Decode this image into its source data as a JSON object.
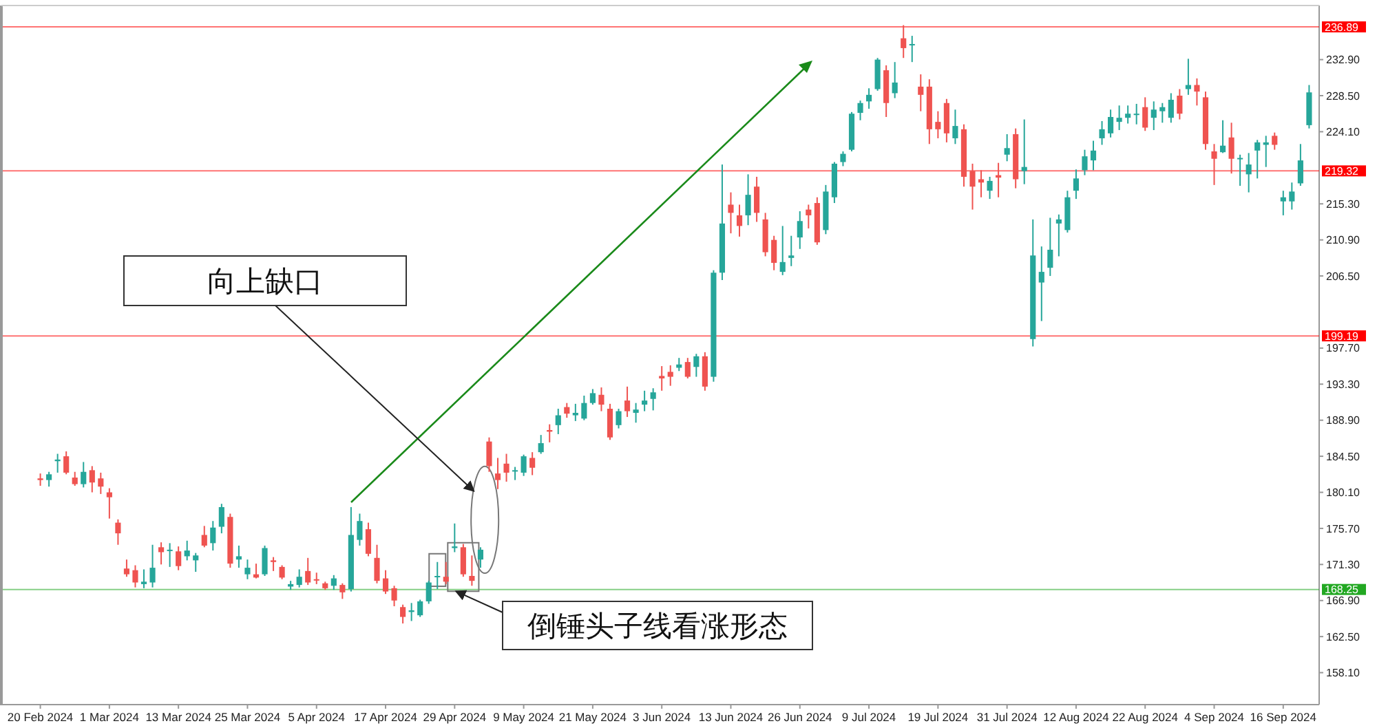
{
  "chart_data": {
    "type": "candlestick",
    "categories": [
      "20 Feb 2024",
      null,
      null,
      null,
      null,
      null,
      null,
      null,
      "1 Mar 2024",
      null,
      null,
      null,
      null,
      null,
      null,
      null,
      "13 Mar 2024",
      null,
      null,
      null,
      null,
      null,
      null,
      null,
      "25 Mar 2024",
      null,
      null,
      null,
      null,
      null,
      null,
      null,
      "5 Apr 2024",
      null,
      null,
      null,
      null,
      null,
      null,
      null,
      "17 Apr 2024",
      null,
      null,
      null,
      null,
      null,
      null,
      null,
      "29 Apr 2024",
      null,
      null,
      null,
      null,
      null,
      null,
      null,
      "9 May 2024",
      null,
      null,
      null,
      null,
      null,
      null,
      null,
      "21 May 2024",
      null,
      null,
      null,
      null,
      null,
      null,
      null,
      "3 Jun 2024",
      null,
      null,
      null,
      null,
      null,
      null,
      null,
      "13 Jun 2024",
      null,
      null,
      null,
      null,
      null,
      null,
      null,
      "26 Jun 2024",
      null,
      null,
      null,
      null,
      null,
      null,
      null,
      "9 Jul 2024",
      null,
      null,
      null,
      null,
      null,
      null,
      null,
      "19 Jul 2024",
      null,
      null,
      null,
      null,
      null,
      null,
      null,
      "31 Jul 2024",
      null,
      null,
      null,
      null,
      null,
      null,
      null,
      "12 Aug 2024",
      null,
      null,
      null,
      null,
      null,
      null,
      null,
      "22 Aug 2024",
      null,
      null,
      null,
      null,
      null,
      null,
      null,
      "4 Sep 2024",
      null,
      null,
      null,
      null,
      null,
      null,
      null,
      "16 Sep 2024",
      null,
      null,
      null
    ],
    "ohlc": [
      [
        181.8,
        182.4,
        180.9,
        181.6
      ],
      [
        181.6,
        182.6,
        180.8,
        182.3
      ],
      [
        183.9,
        184.8,
        182.5,
        184.1
      ],
      [
        184.5,
        185.1,
        182.3,
        182.5
      ],
      [
        181.9,
        182.6,
        180.9,
        181.1
      ],
      [
        181.1,
        183.8,
        180.7,
        182.6
      ],
      [
        182.8,
        183.3,
        180.1,
        181.3
      ],
      [
        181.8,
        182.5,
        179.9,
        180.8
      ],
      [
        180.1,
        180.6,
        176.9,
        179.5
      ],
      [
        176.4,
        176.8,
        173.7,
        175.1
      ],
      [
        170.8,
        171.9,
        169.8,
        170.1
      ],
      [
        170.6,
        171.2,
        168.5,
        169.1
      ],
      [
        168.9,
        170.7,
        168.4,
        169.2
      ],
      [
        169.1,
        173.7,
        168.5,
        170.9
      ],
      [
        173.4,
        174.0,
        171.3,
        172.8
      ],
      [
        173.0,
        173.9,
        171.0,
        173.1
      ],
      [
        172.9,
        173.5,
        170.6,
        171.1
      ],
      [
        172.3,
        174.2,
        171.8,
        173.0
      ],
      [
        171.8,
        172.7,
        170.4,
        172.4
      ],
      [
        174.9,
        176.0,
        173.4,
        173.6
      ],
      [
        173.9,
        176.6,
        173.0,
        175.8
      ],
      [
        175.9,
        178.7,
        175.1,
        178.3
      ],
      [
        177.1,
        177.5,
        170.9,
        171.4
      ],
      [
        171.9,
        173.6,
        170.9,
        172.3
      ],
      [
        170.1,
        171.9,
        169.5,
        170.9
      ],
      [
        170.1,
        171.4,
        169.6,
        169.7
      ],
      [
        170.1,
        173.6,
        169.9,
        173.3
      ],
      [
        171.8,
        172.2,
        170.5,
        171.6
      ],
      [
        171.0,
        171.2,
        169.5,
        169.7
      ],
      [
        168.6,
        169.3,
        168.2,
        168.9
      ],
      [
        168.8,
        170.7,
        168.5,
        169.8
      ],
      [
        170.5,
        172.1,
        168.8,
        169.1
      ],
      [
        169.5,
        170.3,
        168.9,
        169.4
      ],
      [
        169.0,
        169.2,
        168.2,
        168.4
      ],
      [
        168.7,
        170.0,
        168.2,
        169.6
      ],
      [
        168.8,
        169.0,
        167.1,
        167.9
      ],
      [
        168.3,
        178.3,
        168.0,
        174.9
      ],
      [
        174.3,
        177.5,
        173.6,
        176.6
      ],
      [
        175.6,
        176.4,
        172.3,
        172.6
      ],
      [
        172.1,
        173.7,
        169.0,
        169.3
      ],
      [
        169.6,
        170.6,
        167.7,
        168.0
      ],
      [
        168.4,
        168.7,
        166.2,
        166.9
      ],
      [
        166.1,
        166.4,
        164.1,
        164.9
      ],
      [
        165.5,
        166.6,
        164.4,
        165.7
      ],
      [
        165.1,
        167.0,
        164.9,
        166.8
      ],
      [
        166.8,
        169.3,
        166.5,
        169.1
      ],
      [
        169.8,
        171.6,
        168.3,
        169.9
      ],
      [
        169.8,
        171.6,
        168.9,
        169.2
      ],
      [
        173.3,
        176.3,
        172.8,
        173.5
      ],
      [
        173.4,
        173.8,
        169.8,
        170.1
      ],
      [
        169.9,
        172.4,
        168.7,
        169.3
      ],
      [
        171.9,
        173.4,
        170.9,
        173.1
      ],
      [
        186.3,
        186.8,
        182.6,
        183.3
      ],
      [
        182.4,
        184.3,
        180.5,
        181.6
      ],
      [
        183.6,
        184.8,
        181.4,
        182.5
      ],
      [
        182.7,
        183.2,
        181.6,
        182.8
      ],
      [
        182.5,
        184.7,
        182.1,
        184.5
      ],
      [
        184.3,
        185.0,
        182.2,
        183.1
      ],
      [
        185.0,
        187.1,
        184.8,
        186.1
      ],
      [
        187.7,
        188.4,
        186.2,
        187.5
      ],
      [
        188.3,
        190.3,
        187.2,
        189.5
      ],
      [
        190.5,
        191.0,
        189.2,
        189.7
      ],
      [
        189.5,
        190.9,
        188.8,
        189.8
      ],
      [
        189.1,
        191.9,
        188.9,
        191.0
      ],
      [
        191.0,
        192.7,
        190.8,
        192.2
      ],
      [
        192.0,
        192.9,
        190.0,
        190.8
      ],
      [
        190.3,
        190.9,
        186.5,
        186.8
      ],
      [
        188.3,
        190.3,
        187.9,
        190.0
      ],
      [
        191.3,
        193.0,
        189.3,
        190.0
      ],
      [
        189.8,
        191.0,
        188.6,
        190.2
      ],
      [
        190.8,
        192.5,
        190.0,
        191.3
      ],
      [
        191.5,
        192.8,
        190.1,
        192.3
      ],
      [
        194.3,
        195.5,
        192.5,
        194.0
      ],
      [
        194.8,
        195.6,
        193.1,
        194.2
      ],
      [
        195.3,
        196.5,
        194.9,
        195.7
      ],
      [
        196.0,
        196.5,
        194.0,
        194.2
      ],
      [
        195.4,
        197.0,
        194.2,
        196.7
      ],
      [
        196.7,
        197.2,
        192.5,
        193.0
      ],
      [
        194.2,
        207.2,
        193.6,
        206.9
      ],
      [
        206.9,
        220.1,
        206.0,
        212.9
      ],
      [
        215.2,
        216.7,
        211.7,
        214.2
      ],
      [
        213.9,
        215.2,
        211.3,
        212.6
      ],
      [
        213.9,
        218.9,
        212.7,
        216.4
      ],
      [
        217.4,
        218.6,
        213.1,
        214.2
      ],
      [
        213.4,
        214.2,
        208.9,
        209.4
      ],
      [
        210.9,
        211.4,
        207.2,
        208.1
      ],
      [
        207.0,
        212.6,
        206.6,
        208.2
      ],
      [
        208.7,
        211.4,
        207.7,
        209.0
      ],
      [
        211.2,
        214.4,
        209.8,
        213.2
      ],
      [
        214.6,
        215.2,
        212.3,
        213.9
      ],
      [
        215.4,
        216.1,
        210.3,
        210.6
      ],
      [
        212.1,
        217.6,
        211.6,
        216.8
      ],
      [
        216.1,
        220.4,
        215.4,
        220.2
      ],
      [
        220.4,
        221.7,
        219.9,
        221.4
      ],
      [
        221.9,
        226.5,
        221.7,
        226.3
      ],
      [
        226.4,
        227.9,
        225.5,
        227.6
      ],
      [
        227.8,
        229.4,
        226.9,
        228.6
      ],
      [
        229.3,
        233.1,
        229.1,
        232.9
      ],
      [
        231.6,
        232.2,
        225.9,
        227.6
      ],
      [
        228.8,
        232.6,
        228.2,
        230.1
      ],
      [
        235.5,
        237.1,
        233.1,
        234.3
      ],
      [
        234.7,
        235.8,
        232.6,
        234.8
      ],
      [
        229.6,
        231.1,
        226.6,
        228.6
      ],
      [
        229.6,
        230.5,
        222.6,
        224.4
      ],
      [
        225.3,
        226.6,
        223.3,
        224.4
      ],
      [
        227.6,
        228.1,
        222.8,
        223.9
      ],
      [
        223.3,
        226.8,
        222.6,
        224.8
      ],
      [
        224.4,
        225.0,
        217.4,
        218.6
      ],
      [
        219.3,
        220.2,
        214.6,
        217.4
      ],
      [
        218.3,
        219.4,
        216.1,
        217.9
      ],
      [
        216.9,
        218.6,
        215.9,
        218.1
      ],
      [
        218.8,
        220.3,
        216.1,
        218.5
      ],
      [
        221.3,
        223.8,
        220.5,
        222.1
      ],
      [
        223.8,
        224.5,
        217.2,
        218.3
      ],
      [
        219.3,
        225.6,
        217.7,
        219.8
      ],
      [
        198.8,
        213.4,
        197.9,
        209.0
      ],
      [
        205.7,
        210.1,
        201.0,
        207.0
      ],
      [
        207.5,
        213.6,
        206.5,
        209.7
      ],
      [
        212.9,
        214.0,
        208.9,
        213.4
      ],
      [
        212.1,
        216.9,
        211.8,
        216.1
      ],
      [
        216.9,
        219.5,
        215.9,
        218.4
      ],
      [
        219.4,
        221.9,
        218.8,
        221.1
      ],
      [
        220.6,
        223.0,
        219.4,
        221.8
      ],
      [
        223.3,
        225.4,
        222.5,
        224.4
      ],
      [
        223.9,
        226.8,
        223.4,
        225.9
      ],
      [
        225.3,
        227.3,
        224.3,
        225.8
      ],
      [
        225.8,
        227.3,
        225.1,
        226.3
      ],
      [
        226.2,
        227.5,
        225.0,
        226.3
      ],
      [
        227.1,
        228.3,
        224.2,
        224.6
      ],
      [
        225.8,
        227.8,
        224.3,
        226.8
      ],
      [
        226.6,
        227.6,
        225.2,
        227.1
      ],
      [
        225.8,
        228.8,
        225.2,
        228.0
      ],
      [
        228.5,
        229.3,
        225.6,
        226.3
      ],
      [
        229.3,
        233.0,
        228.6,
        229.8
      ],
      [
        229.8,
        230.6,
        227.3,
        229.0
      ],
      [
        228.3,
        229.0,
        221.9,
        222.6
      ],
      [
        221.7,
        222.6,
        217.6,
        220.8
      ],
      [
        221.6,
        225.5,
        221.5,
        222.4
      ],
      [
        223.4,
        225.2,
        219.0,
        220.8
      ],
      [
        220.8,
        221.3,
        217.5,
        220.9
      ],
      [
        218.9,
        221.5,
        216.7,
        220.1
      ],
      [
        221.8,
        223.1,
        218.4,
        222.8
      ],
      [
        222.5,
        223.6,
        219.8,
        222.8
      ],
      [
        223.6,
        224.0,
        221.9,
        222.5
      ],
      [
        215.6,
        216.9,
        213.9,
        216.1
      ],
      [
        215.6,
        217.9,
        214.6,
        216.8
      ],
      [
        217.8,
        222.6,
        217.5,
        220.6
      ],
      [
        224.9,
        229.8,
        224.5,
        228.9
      ]
    ],
    "ylim": [
      154.2,
      239.5
    ],
    "yticks": [
      {
        "value": 158.1,
        "label": "158.10"
      },
      {
        "value": 162.5,
        "label": "162.50"
      },
      {
        "value": 166.9,
        "label": "166.90"
      },
      {
        "value": 171.3,
        "label": "171.30"
      },
      {
        "value": 175.7,
        "label": "175.70"
      },
      {
        "value": 180.1,
        "label": "180.10"
      },
      {
        "value": 184.5,
        "label": "184.50"
      },
      {
        "value": 188.9,
        "label": "188.90"
      },
      {
        "value": 193.3,
        "label": "193.30"
      },
      {
        "value": 197.7,
        "label": "197.70"
      },
      {
        "value": 206.5,
        "label": "206.50"
      },
      {
        "value": 210.9,
        "label": "210.90"
      },
      {
        "value": 215.3,
        "label": "215.30"
      },
      {
        "value": 224.1,
        "label": "224.10"
      },
      {
        "value": 228.5,
        "label": "228.50"
      },
      {
        "value": 232.9,
        "label": "232.90"
      }
    ],
    "ref_lines": [
      {
        "axis": "y",
        "value": 236.89,
        "label": "236.89",
        "color": "#ff0000"
      },
      {
        "axis": "y",
        "value": 219.32,
        "label": "219.32",
        "color": "#ff0000"
      },
      {
        "axis": "y",
        "value": 199.19,
        "label": "199.19",
        "color": "#ff0000"
      },
      {
        "axis": "y",
        "value": 168.25,
        "label": "168.25",
        "color": "#22a822"
      }
    ],
    "annotations": [
      "向上缺口",
      "倒锤头子线看涨形态"
    ]
  }
}
